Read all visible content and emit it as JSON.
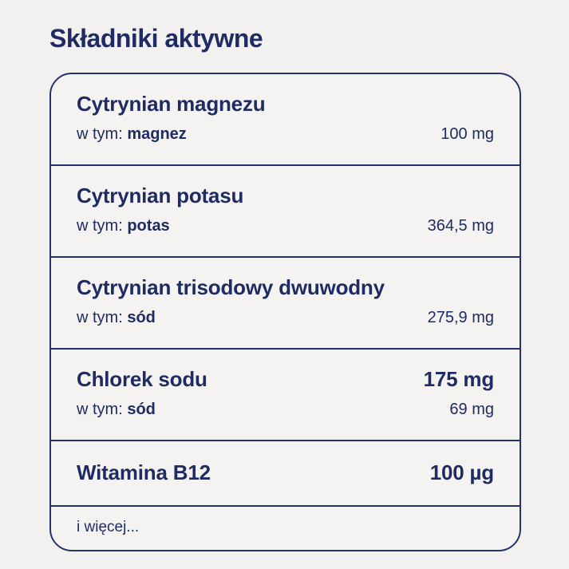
{
  "header": {
    "title": "Składniki aktywne"
  },
  "table": {
    "rows": [
      {
        "name": "Cytrynian magnezu",
        "value": "",
        "sub_prefix": "w tym: ",
        "sub_name": "magnez",
        "sub_value": "100 mg"
      },
      {
        "name": "Cytrynian potasu",
        "value": "",
        "sub_prefix": "w tym: ",
        "sub_name": "potas",
        "sub_value": "364,5 mg"
      },
      {
        "name": "Cytrynian trisodowy dwuwodny",
        "value": "",
        "sub_prefix": "w tym: ",
        "sub_name": "sód",
        "sub_value": "275,9 mg"
      },
      {
        "name": "Chlorek sodu",
        "value": "175 mg",
        "sub_prefix": "w tym: ",
        "sub_name": "sód",
        "sub_value": "69 mg"
      },
      {
        "name": "Witamina B12",
        "value": "100 µg"
      }
    ],
    "more_label": "i więcej..."
  },
  "colors": {
    "text_navy": "#1f2b63",
    "border_navy": "#26326b",
    "background": "#f2f1ef"
  }
}
